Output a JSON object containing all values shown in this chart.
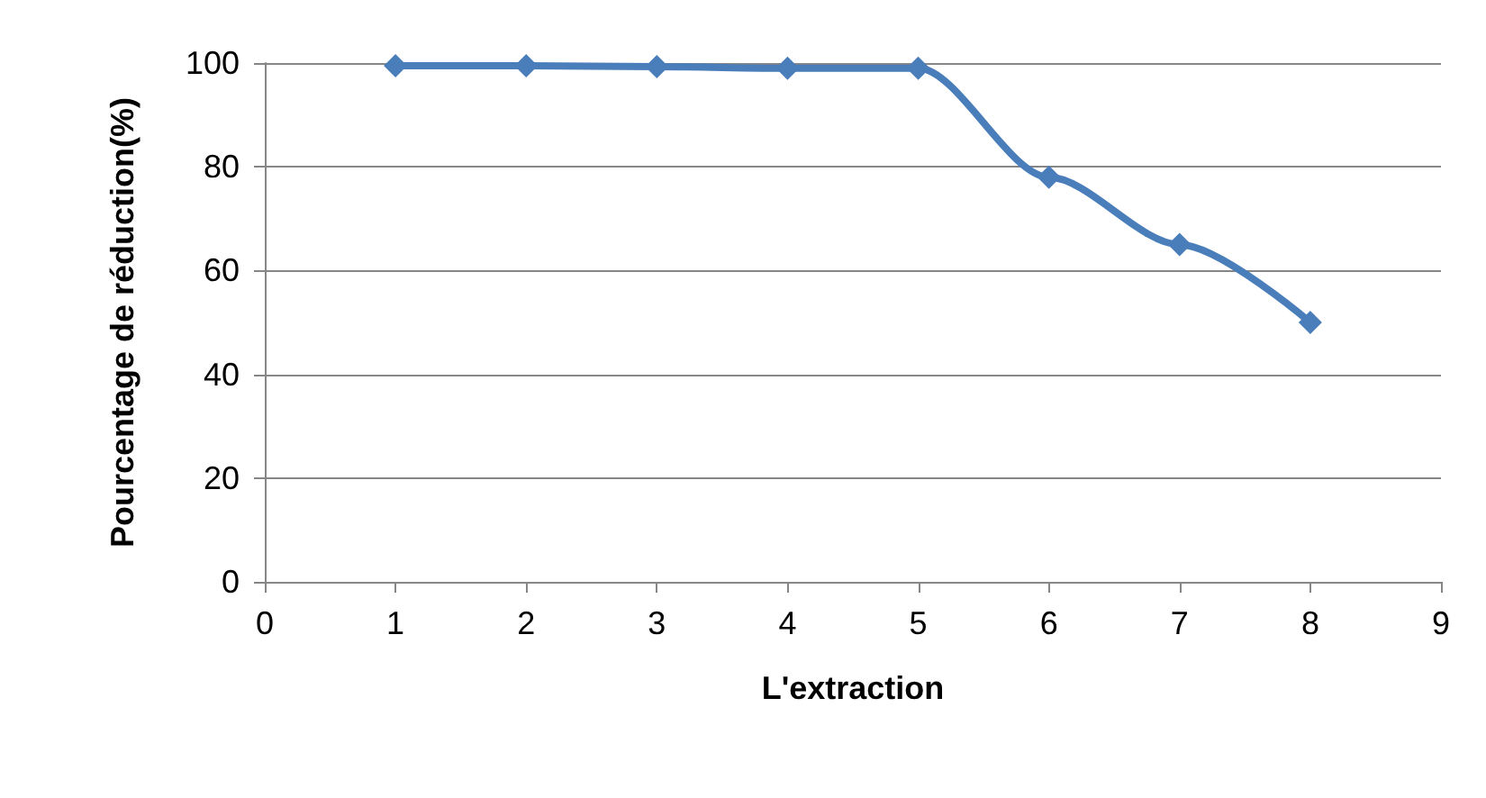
{
  "chart_data": {
    "type": "line",
    "xlabel": "L'extraction",
    "ylabel": "Pourcentage de réduction(%)",
    "x": [
      1,
      2,
      3,
      4,
      5,
      6,
      7,
      8
    ],
    "series": [
      {
        "color": "#4a7ebb",
        "values": [
          99.5,
          99.5,
          99.3,
          99,
          99,
          78,
          65,
          50
        ]
      }
    ],
    "xlim": [
      0,
      9
    ],
    "xticks": [
      0,
      1,
      2,
      3,
      4,
      5,
      6,
      7,
      8,
      9
    ],
    "ylim": [
      0,
      100
    ],
    "yticks": [
      0,
      20,
      40,
      60,
      80,
      100
    ],
    "grid": "y",
    "marker": "diamond",
    "line_style": "solid"
  }
}
